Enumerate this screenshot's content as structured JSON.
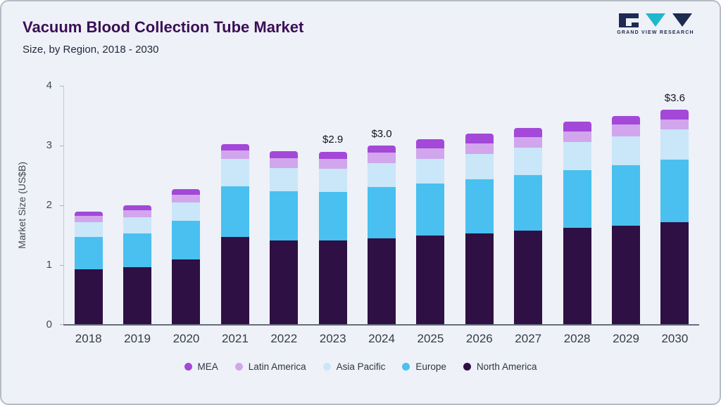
{
  "header": {
    "title": "Vacuum Blood Collection Tube Market",
    "subtitle": "Size, by Region, 2018 - 2030"
  },
  "logo": {
    "text": "GRAND VIEW RESEARCH"
  },
  "chart_data": {
    "type": "bar",
    "stacked": true,
    "title": "Vacuum Blood Collection Tube Market Size, by Region, 2018 - 2030",
    "xlabel": "",
    "ylabel": "Market Size (US$B)",
    "ylim": [
      0,
      4
    ],
    "yticks": [
      0,
      1,
      2,
      3,
      4
    ],
    "grid": false,
    "legend_position": "bottom",
    "categories": [
      "2018",
      "2019",
      "2020",
      "2021",
      "2022",
      "2023",
      "2024",
      "2025",
      "2026",
      "2027",
      "2028",
      "2029",
      "2030"
    ],
    "series": [
      {
        "name": "North America",
        "color": "#2e1044",
        "values": [
          0.93,
          0.97,
          1.1,
          1.47,
          1.41,
          1.41,
          1.45,
          1.49,
          1.53,
          1.58,
          1.62,
          1.66,
          1.72
        ]
      },
      {
        "name": "Europe",
        "color": "#49c0ef",
        "values": [
          0.54,
          0.56,
          0.64,
          0.85,
          0.83,
          0.81,
          0.85,
          0.87,
          0.9,
          0.93,
          0.97,
          1.01,
          1.05
        ]
      },
      {
        "name": "Asia Pacific",
        "color": "#c9e7f9",
        "values": [
          0.25,
          0.27,
          0.31,
          0.45,
          0.38,
          0.39,
          0.41,
          0.41,
          0.43,
          0.45,
          0.47,
          0.49,
          0.5
        ]
      },
      {
        "name": "Latin America",
        "color": "#d1a6ec",
        "values": [
          0.11,
          0.12,
          0.13,
          0.15,
          0.17,
          0.17,
          0.17,
          0.18,
          0.18,
          0.18,
          0.18,
          0.19,
          0.17
        ]
      },
      {
        "name": "MEA",
        "color": "#a348d8",
        "values": [
          0.07,
          0.08,
          0.09,
          0.1,
          0.12,
          0.12,
          0.12,
          0.15,
          0.16,
          0.16,
          0.16,
          0.15,
          0.16
        ]
      }
    ],
    "totals": [
      1.9,
      2.0,
      2.27,
      3.02,
      2.91,
      2.9,
      3.0,
      3.1,
      3.2,
      3.3,
      3.4,
      3.5,
      3.6
    ],
    "annotations": [
      {
        "category": "2023",
        "label": "$2.9"
      },
      {
        "category": "2024",
        "label": "$3.0"
      },
      {
        "category": "2030",
        "label": "$3.6"
      }
    ],
    "legend": [
      "MEA",
      "Latin America",
      "Asia Pacific",
      "Europe",
      "North America"
    ]
  }
}
